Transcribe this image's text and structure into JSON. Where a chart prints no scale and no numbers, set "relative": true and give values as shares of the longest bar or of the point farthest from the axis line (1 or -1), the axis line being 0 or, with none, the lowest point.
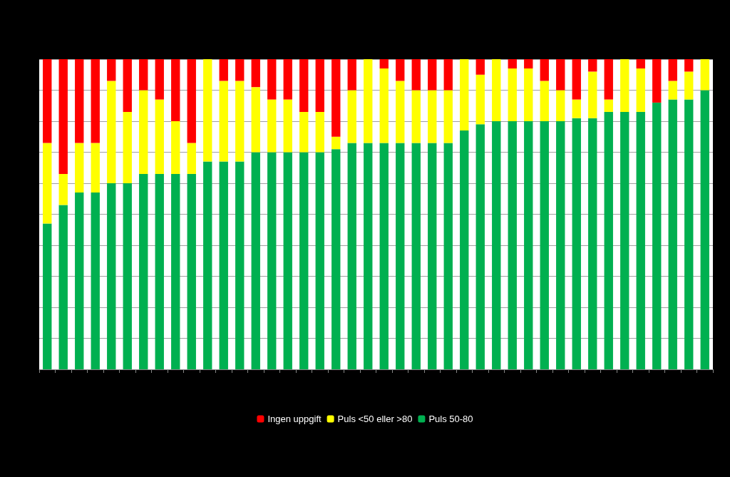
{
  "chart_data": {
    "type": "bar",
    "stacked": true,
    "relative": true,
    "grid": "y",
    "legend": "bottom",
    "categories": [
      null,
      null,
      null,
      null,
      null,
      null,
      null,
      null,
      null,
      null,
      null,
      null,
      null,
      null,
      null,
      null,
      null,
      null,
      null,
      null,
      null,
      null,
      null,
      null,
      null,
      null,
      null,
      null,
      null,
      null,
      null,
      null,
      null,
      null,
      null,
      null,
      null,
      null,
      null,
      null,
      null,
      null
    ],
    "series": [
      {
        "name": "Puls 50-80",
        "color": "#00b050",
        "values": [
          0.47,
          0.53,
          0.57,
          0.57,
          0.6,
          0.6,
          0.63,
          0.63,
          0.63,
          0.63,
          0.67,
          0.67,
          0.67,
          0.7,
          0.7,
          0.7,
          0.7,
          0.7,
          0.71,
          0.73,
          0.73,
          0.73,
          0.73,
          0.73,
          0.73,
          0.73,
          0.77,
          0.79,
          0.8,
          0.8,
          0.8,
          0.8,
          0.8,
          0.81,
          0.81,
          0.83,
          0.83,
          0.83,
          0.86,
          0.87,
          0.87,
          0.9
        ]
      },
      {
        "name": "Puls <50 eller >80",
        "color": "#ffff00",
        "values": [
          0.26,
          0.1,
          0.16,
          0.16,
          0.33,
          0.23,
          0.27,
          0.24,
          0.17,
          0.1,
          0.33,
          0.26,
          0.26,
          0.21,
          0.17,
          0.17,
          0.13,
          0.13,
          0.04,
          0.17,
          0.27,
          0.24,
          0.2,
          0.17,
          0.17,
          0.17,
          0.23,
          0.16,
          0.2,
          0.17,
          0.17,
          0.13,
          0.1,
          0.06,
          0.15,
          0.04,
          0.17,
          0.14,
          0,
          0.06,
          0.09,
          0.1
        ]
      },
      {
        "name": "Ingen uppgift",
        "color": "#ff0000",
        "values": [
          0.27,
          0.37,
          0.27,
          0.27,
          0.07,
          0.17,
          0.1,
          0.13,
          0.2,
          0.27,
          0,
          0.07,
          0.07,
          0.09,
          0.13,
          0.13,
          0.17,
          0.17,
          0.25,
          0.1,
          0,
          0.03,
          0.07,
          0.1,
          0.1,
          0.1,
          0,
          0.05,
          0,
          0.03,
          0.03,
          0.07,
          0.1,
          0.13,
          0.04,
          0.13,
          0,
          0.03,
          0.14,
          0.07,
          0.04,
          0
        ]
      }
    ]
  }
}
